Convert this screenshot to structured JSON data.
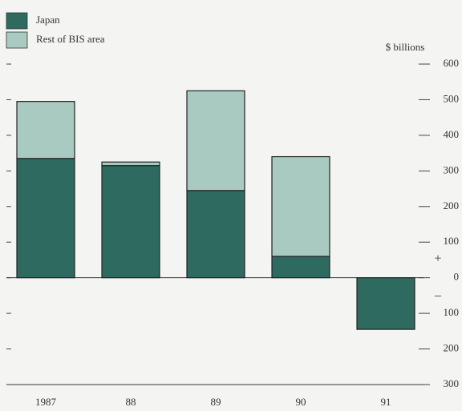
{
  "chart_data": {
    "type": "stacked-bar",
    "categories": [
      "1987",
      "88",
      "89",
      "90",
      "91"
    ],
    "series": [
      {
        "name": "Japan",
        "color": "#2e6a5f",
        "values": [
          335,
          315,
          245,
          60,
          -145
        ]
      },
      {
        "name": "Rest of BIS area",
        "color": "#a9cac1",
        "values": [
          160,
          10,
          280,
          280,
          0
        ]
      }
    ],
    "y_label": "$ billions",
    "plus_sign": "+",
    "minus_sign": "–",
    "ylim": [
      -300,
      600
    ],
    "yticks": [
      {
        "value": -300,
        "label": "300"
      },
      {
        "value": -200,
        "label": "200"
      },
      {
        "value": -100,
        "label": "100"
      },
      0,
      100,
      200,
      300,
      400,
      500,
      600
    ]
  }
}
